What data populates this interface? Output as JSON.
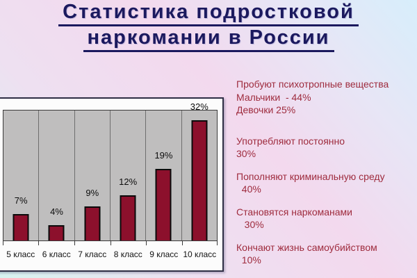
{
  "title": {
    "line1": "Статистика подростковой",
    "line2": "наркомании в России"
  },
  "chart_data": {
    "type": "bar",
    "categories": [
      "5 класс",
      "6 класс",
      "7 класс",
      "8 класс",
      "9 класс",
      "10 класс"
    ],
    "values": [
      7,
      4,
      9,
      12,
      19,
      32
    ],
    "value_labels": [
      "7%",
      "4%",
      "9%",
      "12%",
      "19%",
      "32%"
    ],
    "title": "",
    "xlabel": "",
    "ylabel": "",
    "ylim": [
      0,
      35
    ],
    "grid": "vertical-column-separators",
    "legend": "none",
    "bar_color": "#8c102c",
    "plot_background": "#bfbebe"
  },
  "right_panel": {
    "groups": [
      {
        "text": "Пробуют психотропные вещества\nМальчики  - 44%\nДевочки 25%"
      },
      {
        "text": "Употребляют постоянно\n30%"
      },
      {
        "text": "Пополняют криминальную среду\n  40%"
      },
      {
        "text": "Становятся наркоманами\n   30%"
      },
      {
        "text": "Кончают жизнь самоубийством\n  10%"
      }
    ]
  },
  "colors": {
    "title_text": "#1b195e",
    "stats_text": "#9e2b3d",
    "bar_fill": "#8c102c",
    "bar_border": "#0a0a0a",
    "plot_gray": "#bfbebe",
    "chart_border": "#2e2e44",
    "background_pink": "#f3d9ee",
    "background_blue": "#d7eefb",
    "background_cyan": "#d7f3f0"
  }
}
